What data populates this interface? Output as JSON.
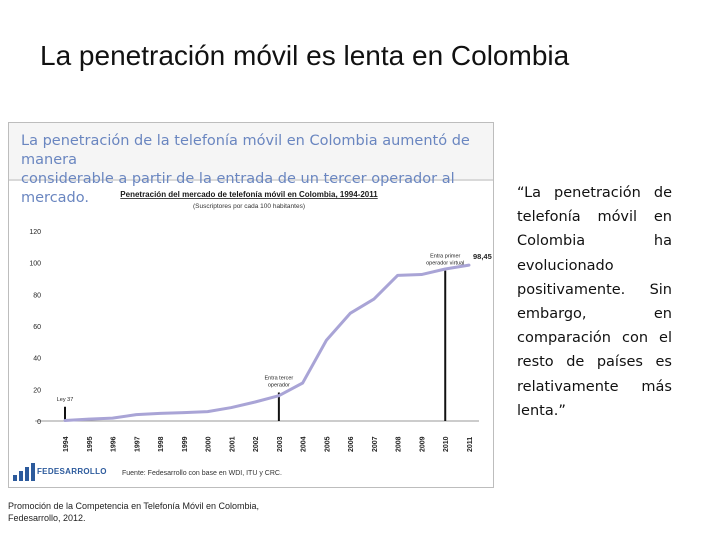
{
  "slide": {
    "title": "La penetración móvil es lenta en Colombia",
    "quote": "“La penetración de telefonía móvil en Colombia ha evolucionado positivamente. Sin embargo, en comparación con el resto de países es relativamente más lenta.”",
    "citation_line1": "Promoción de la Competencia en Telefonía Móvil en Colombia,",
    "citation_line2": "Fedesarrollo, 2012."
  },
  "figure": {
    "header_line1": "La penetración de la telefonía móvil en Colombia aumentó de manera",
    "header_line2": "considerable a partir de la entrada de un tercer operador al mercado.",
    "logo_text": "FEDESARROLLO",
    "source": "Fuente: Fedesarrollo con base en WDI, ITU y CRC."
  },
  "chart_data": {
    "type": "line",
    "title": "Penetración del mercado de telefonía móvil en Colombia, 1994-2011",
    "subtitle": "(Suscriptores por cada 100 habitantes)",
    "xlabel": "",
    "ylabel": "",
    "x": [
      "1994",
      "1995",
      "1996",
      "1997",
      "1998",
      "1999",
      "2000",
      "2001",
      "2002",
      "2003",
      "2004",
      "2005",
      "2006",
      "2007",
      "2008",
      "2009",
      "2010",
      "2011"
    ],
    "series": [
      {
        "name": "Penetración",
        "values": [
          0.3,
          1.2,
          1.8,
          4.0,
          4.8,
          5.3,
          5.9,
          8.5,
          12.0,
          16.0,
          24.0,
          51.0,
          68.0,
          77.0,
          92.0,
          92.5,
          96.0,
          98.45
        ]
      }
    ],
    "ylim": [
      0,
      120
    ],
    "yticks": [
      0,
      20,
      40,
      60,
      80,
      100,
      120
    ],
    "end_label": "98,45",
    "annotations": [
      {
        "text": "Ley 37",
        "year": "1994",
        "marker_top": 9
      },
      {
        "text": "Entra tercer operador",
        "year": "2003",
        "marker_top": 18
      },
      {
        "text": "Entra primer operador virtual",
        "year": "2010",
        "marker_top": 95
      }
    ],
    "line_color": "#a9a4d6",
    "marker_color": "#111111"
  }
}
